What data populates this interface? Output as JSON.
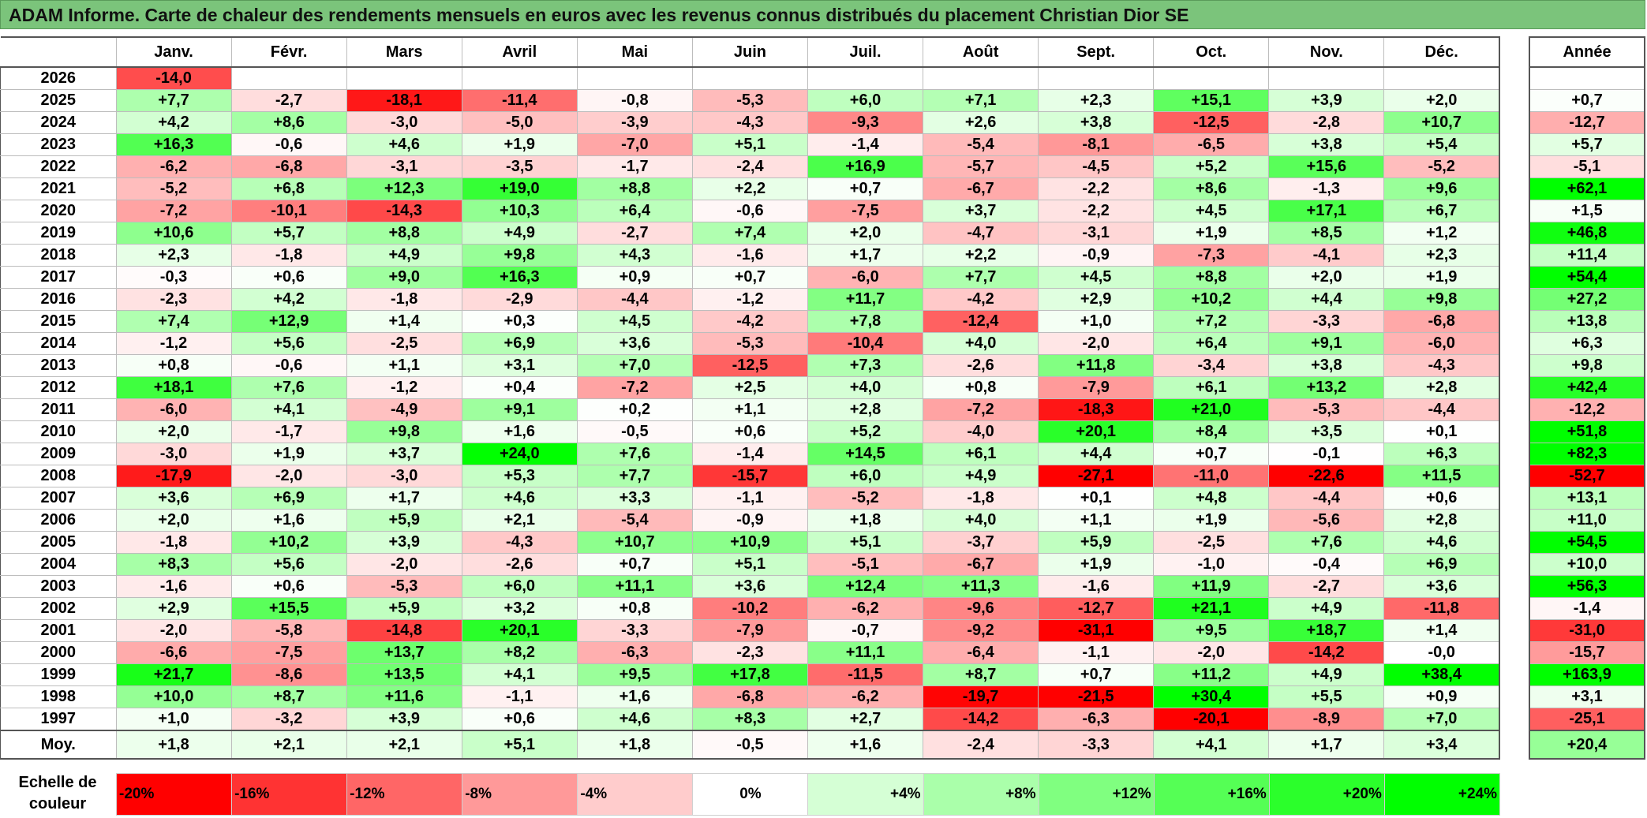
{
  "title": "ADAM Informe. Carte de chaleur des rendements mensuels en euros avec les revenus connus distribués du placement Christian Dior SE",
  "chart_data": {
    "type": "heatmap",
    "columns": [
      "Janv.",
      "Févr.",
      "Mars",
      "Avril",
      "Mai",
      "Juin",
      "Juil.",
      "Août",
      "Sept.",
      "Oct.",
      "Nov.",
      "Déc."
    ],
    "annual_header": "Année",
    "average_label": "Moy.",
    "rows": [
      {
        "year": "2026",
        "months": [
          "-14,0",
          "",
          "",
          "",
          "",
          "",
          "",
          "",
          "",
          "",
          "",
          ""
        ],
        "annual": ""
      },
      {
        "year": "2025",
        "months": [
          "+7,7",
          "-2,7",
          "-18,1",
          "-11,4",
          "-0,8",
          "-5,3",
          "+6,0",
          "+7,1",
          "+2,3",
          "+15,1",
          "+3,9",
          "+2,0"
        ],
        "annual": "+0,7"
      },
      {
        "year": "2024",
        "months": [
          "+4,2",
          "+8,6",
          "-3,0",
          "-5,0",
          "-3,9",
          "-4,3",
          "-9,3",
          "+2,6",
          "+3,8",
          "-12,5",
          "-2,8",
          "+10,7"
        ],
        "annual": "-12,7"
      },
      {
        "year": "2023",
        "months": [
          "+16,3",
          "-0,6",
          "+4,6",
          "+1,9",
          "-7,0",
          "+5,1",
          "-1,4",
          "-5,4",
          "-8,1",
          "-6,5",
          "+3,8",
          "+5,4"
        ],
        "annual": "+5,7"
      },
      {
        "year": "2022",
        "months": [
          "-6,2",
          "-6,8",
          "-3,1",
          "-3,5",
          "-1,7",
          "-2,4",
          "+16,9",
          "-5,7",
          "-4,5",
          "+5,2",
          "+15,6",
          "-5,2"
        ],
        "annual": "-5,1"
      },
      {
        "year": "2021",
        "months": [
          "-5,2",
          "+6,8",
          "+12,3",
          "+19,0",
          "+8,8",
          "+2,2",
          "+0,7",
          "-6,7",
          "-2,2",
          "+8,6",
          "-1,3",
          "+9,6"
        ],
        "annual": "+62,1"
      },
      {
        "year": "2020",
        "months": [
          "-7,2",
          "-10,1",
          "-14,3",
          "+10,3",
          "+6,4",
          "-0,6",
          "-7,5",
          "+3,7",
          "-2,2",
          "+4,5",
          "+17,1",
          "+6,7"
        ],
        "annual": "+1,5"
      },
      {
        "year": "2019",
        "months": [
          "+10,6",
          "+5,7",
          "+8,8",
          "+4,9",
          "-2,7",
          "+7,4",
          "+2,0",
          "-4,7",
          "-3,1",
          "+1,9",
          "+8,5",
          "+1,2"
        ],
        "annual": "+46,8"
      },
      {
        "year": "2018",
        "months": [
          "+2,3",
          "-1,8",
          "+4,9",
          "+9,8",
          "+4,3",
          "-1,6",
          "+1,7",
          "+2,2",
          "-0,9",
          "-7,3",
          "-4,1",
          "+2,3"
        ],
        "annual": "+11,4"
      },
      {
        "year": "2017",
        "months": [
          "-0,3",
          "+0,6",
          "+9,0",
          "+16,3",
          "+0,9",
          "+0,7",
          "-6,0",
          "+7,7",
          "+4,5",
          "+8,8",
          "+2,0",
          "+1,9"
        ],
        "annual": "+54,4"
      },
      {
        "year": "2016",
        "months": [
          "-2,3",
          "+4,2",
          "-1,8",
          "-2,9",
          "-4,4",
          "-1,2",
          "+11,7",
          "-4,2",
          "+2,9",
          "+10,2",
          "+4,4",
          "+9,8"
        ],
        "annual": "+27,2"
      },
      {
        "year": "2015",
        "months": [
          "+7,4",
          "+12,9",
          "+1,4",
          "+0,3",
          "+4,5",
          "-4,2",
          "+7,8",
          "-12,4",
          "+1,0",
          "+7,2",
          "-3,3",
          "-6,8"
        ],
        "annual": "+13,8"
      },
      {
        "year": "2014",
        "months": [
          "-1,2",
          "+5,6",
          "-2,5",
          "+6,9",
          "+3,6",
          "-5,3",
          "-10,4",
          "+4,0",
          "-2,0",
          "+6,4",
          "+9,1",
          "-6,0"
        ],
        "annual": "+6,3"
      },
      {
        "year": "2013",
        "months": [
          "+0,8",
          "-0,6",
          "+1,1",
          "+3,1",
          "+7,0",
          "-12,5",
          "+7,3",
          "-2,6",
          "+11,8",
          "-3,4",
          "+3,8",
          "-4,3"
        ],
        "annual": "+9,8"
      },
      {
        "year": "2012",
        "months": [
          "+18,1",
          "+7,6",
          "-1,2",
          "+0,4",
          "-7,2",
          "+2,5",
          "+4,0",
          "+0,8",
          "-7,9",
          "+6,1",
          "+13,2",
          "+2,8"
        ],
        "annual": "+42,4"
      },
      {
        "year": "2011",
        "months": [
          "-6,0",
          "+4,1",
          "-4,9",
          "+9,1",
          "+0,2",
          "+1,1",
          "+2,8",
          "-7,2",
          "-18,3",
          "+21,0",
          "-5,3",
          "-4,4"
        ],
        "annual": "-12,2"
      },
      {
        "year": "2010",
        "months": [
          "+2,0",
          "-1,7",
          "+9,8",
          "+1,6",
          "-0,5",
          "+0,6",
          "+5,2",
          "-4,0",
          "+20,1",
          "+8,4",
          "+3,5",
          "+0,1"
        ],
        "annual": "+51,8"
      },
      {
        "year": "2009",
        "months": [
          "-3,0",
          "+1,9",
          "+3,7",
          "+24,0",
          "+7,6",
          "-1,4",
          "+14,5",
          "+6,1",
          "+4,4",
          "+0,7",
          "-0,1",
          "+6,3"
        ],
        "annual": "+82,3"
      },
      {
        "year": "2008",
        "months": [
          "-17,9",
          "-2,0",
          "-3,0",
          "+5,3",
          "+7,7",
          "-15,7",
          "+6,0",
          "+4,9",
          "-27,1",
          "-11,0",
          "-22,6",
          "+11,5"
        ],
        "annual": "-52,7"
      },
      {
        "year": "2007",
        "months": [
          "+3,6",
          "+6,9",
          "+1,7",
          "+4,6",
          "+3,3",
          "-1,1",
          "-5,2",
          "-1,8",
          "+0,1",
          "+4,8",
          "-4,4",
          "+0,6"
        ],
        "annual": "+13,1"
      },
      {
        "year": "2006",
        "months": [
          "+2,0",
          "+1,6",
          "+5,9",
          "+2,1",
          "-5,4",
          "-0,9",
          "+1,8",
          "+4,0",
          "+1,1",
          "+1,9",
          "-5,6",
          "+2,8"
        ],
        "annual": "+11,0"
      },
      {
        "year": "2005",
        "months": [
          "-1,8",
          "+10,2",
          "+3,9",
          "-4,3",
          "+10,7",
          "+10,9",
          "+5,1",
          "-3,7",
          "+5,9",
          "-2,5",
          "+7,6",
          "+4,6"
        ],
        "annual": "+54,5"
      },
      {
        "year": "2004",
        "months": [
          "+8,3",
          "+5,6",
          "-2,0",
          "-2,6",
          "+0,7",
          "+5,1",
          "-5,1",
          "-6,7",
          "+1,9",
          "-1,0",
          "-0,4",
          "+6,9"
        ],
        "annual": "+10,0"
      },
      {
        "year": "2003",
        "months": [
          "-1,6",
          "+0,6",
          "-5,3",
          "+6,0",
          "+11,1",
          "+3,6",
          "+12,4",
          "+11,3",
          "-1,6",
          "+11,9",
          "-2,7",
          "+3,6"
        ],
        "annual": "+56,3"
      },
      {
        "year": "2002",
        "months": [
          "+2,9",
          "+15,5",
          "+5,9",
          "+3,2",
          "+0,8",
          "-10,2",
          "-6,2",
          "-9,6",
          "-12,7",
          "+21,1",
          "+4,9",
          "-11,8"
        ],
        "annual": "-1,4"
      },
      {
        "year": "2001",
        "months": [
          "-2,0",
          "-5,8",
          "-14,8",
          "+20,1",
          "-3,3",
          "-7,9",
          "-0,7",
          "-9,2",
          "-31,1",
          "+9,5",
          "+18,7",
          "+1,4"
        ],
        "annual": "-31,0"
      },
      {
        "year": "2000",
        "months": [
          "-6,6",
          "-7,5",
          "+13,7",
          "+8,2",
          "-6,3",
          "-2,3",
          "+11,1",
          "-6,4",
          "-1,1",
          "-2,0",
          "-14,2",
          "-0,0"
        ],
        "annual": "-15,7"
      },
      {
        "year": "1999",
        "months": [
          "+21,7",
          "-8,6",
          "+13,5",
          "+4,1",
          "+9,5",
          "+17,8",
          "-11,5",
          "+8,7",
          "+0,7",
          "+11,2",
          "+4,9",
          "+38,4"
        ],
        "annual": "+163,9"
      },
      {
        "year": "1998",
        "months": [
          "+10,0",
          "+8,7",
          "+11,6",
          "-1,1",
          "+1,6",
          "-6,8",
          "-6,2",
          "-19,7",
          "-21,5",
          "+30,4",
          "+5,5",
          "+0,9"
        ],
        "annual": "+3,1"
      },
      {
        "year": "1997",
        "months": [
          "+1,0",
          "-3,2",
          "+3,9",
          "+0,6",
          "+4,6",
          "+8,3",
          "+2,7",
          "-14,2",
          "-6,3",
          "-20,1",
          "-8,9",
          "+7,0"
        ],
        "annual": "-25,1"
      }
    ],
    "averages": {
      "months": [
        "+1,8",
        "+2,1",
        "+2,1",
        "+5,1",
        "+1,8",
        "-0,5",
        "+1,6",
        "-2,4",
        "-3,3",
        "+4,1",
        "+1,7",
        "+3,4"
      ],
      "annual": "+20,4"
    },
    "scale": {
      "label": "Echelle de\ncouleur",
      "steps": [
        "-20%",
        "-16%",
        "-12%",
        "-8%",
        "-4%",
        "0%",
        "+4%",
        "+8%",
        "+12%",
        "+16%",
        "+20%",
        "+24%"
      ]
    },
    "colors": {
      "red_max": "#ff0000",
      "white": "#ffffff",
      "green_max": "#00ff00",
      "title_bg": "#7bc47b"
    }
  }
}
